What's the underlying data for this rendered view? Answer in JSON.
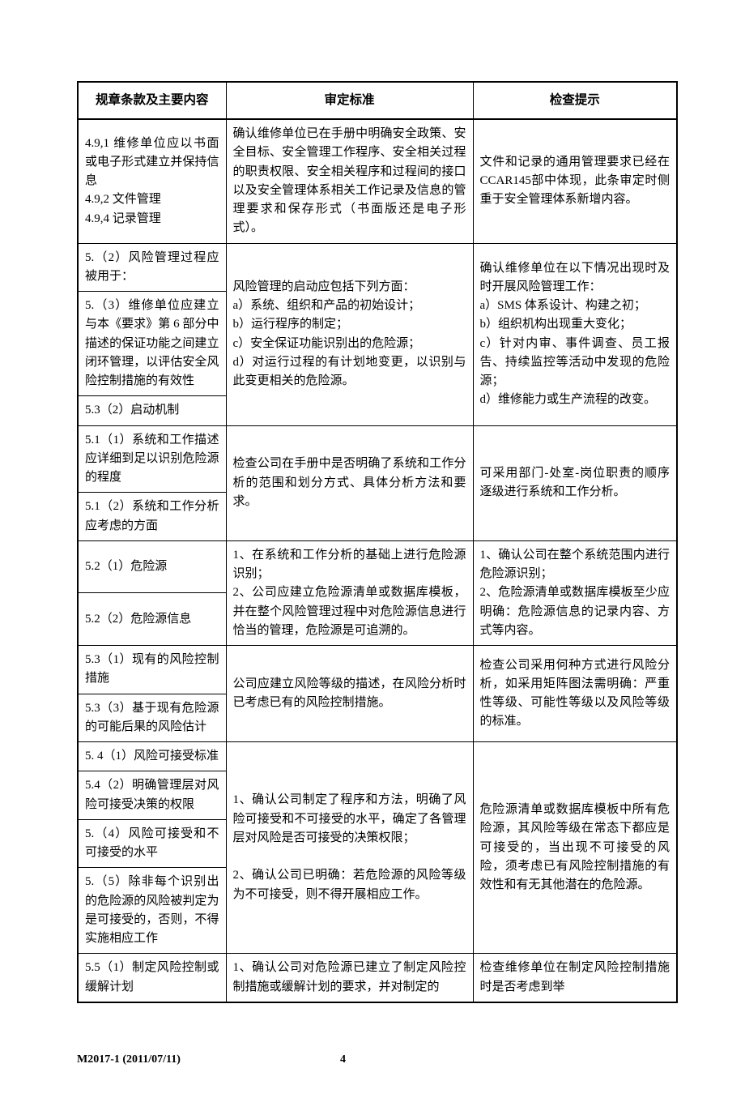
{
  "header": {
    "col1": "规章条款及主要内容",
    "col2": "审定标准",
    "col3": "检查提示"
  },
  "rows": {
    "r1c1": "4.9,1 维修单位应以书面或电子形式建立并保持信息\n4.9,2 文件管理\n4.9,4 记录管理",
    "r1c2": "确认维修单位已在手册中明确安全政策、安全目标、安全管理工作程序、安全相关过程的职责权限、安全相关程序和过程间的接口以及安全管理体系相关工作记录及信息的管理要求和保存形式（书面版还是电子形式）。",
    "r1c3": "文件和记录的通用管理要求已经在CCAR145部中体现，此条审定时侧重于安全管理体系新增内容。",
    "r2c1a": "5.（2）风险管理过程应被用于：",
    "r2c1b": "5.（3）维修单位应建立与本《要求》第 6 部分中描述的保证功能之间建立闭环管理，以评估安全风险控制措施的有效性",
    "r2c1c": "5.3（2）启动机制",
    "r2c2": "风险管理的启动应包括下列方面：\na）系统、组织和产品的初始设计；\nb）运行程序的制定；\nc）安全保证功能识别出的危险源；\nd）对运行过程的有计划地变更，以识别与此变更相关的危险源。",
    "r2c3": "确认维修单位在以下情况出现时及时开展风险管理工作：\na）SMS 体系设计、构建之初；\nb）组织机构出现重大变化；\nc）针对内审、事件调查、员工报告、持续监控等活动中发现的危险源；\nd）维修能力或生产流程的改变。",
    "r3c1a": "5.1（1）系统和工作描述应详细到足以识别危险源的程度",
    "r3c1b": "5.1（2）系统和工作分析应考虑的方面",
    "r3c2": "检查公司在手册中是否明确了系统和工作分析的范围和划分方式、具体分析方法和要求。",
    "r3c3": "可采用部门-处室-岗位职责的顺序逐级进行系统和工作分析。",
    "r4c1a": "5.2（1）危险源",
    "r4c1b": "5.2（2）危险源信息",
    "r4c2": "1、在系统和工作分析的基础上进行危险源识别；\n2、公司应建立危险源清单或数据库模板，并在整个风险管理过程中对危险源信息进行恰当的管理，危险源是可追溯的。",
    "r4c3": "1、确认公司在整个系统范围内进行危险源识别；\n2、危险源清单或数据库模板至少应明确：危险源信息的记录内容、方式等内容。",
    "r5c1a": "5.3（1）现有的风险控制措施",
    "r5c1b": "5.3（3）基于现有危险源的可能后果的风险估计",
    "r5c2": "公司应建立风险等级的描述，在风险分析时已考虑已有的风险控制措施。",
    "r5c3": "检查公司采用何种方式进行风险分析，如采用矩阵图法需明确：严重性等级、可能性等级以及风险等级的标准。",
    "r6c1a": "5. 4（1）风险可接受标准",
    "r6c1b": "5.4（2）明确管理层对风险可接受决策的权限",
    "r6c1c": "5.（4）风险可接受和不可接受的水平",
    "r6c1d": "5.（5）除非每个识别出的危险源的风险被判定为是可接受的，否则，不得实施相应工作",
    "r6c2": "1、确认公司制定了程序和方法，明确了风险可接受和不可接受的水平，确定了各管理层对风险是否可接受的决策权限；\n\n2、确认公司已明确：若危险源的风险等级为不可接受，则不得开展相应工作。",
    "r6c3": "危险源清单或数据库模板中所有危险源，其风险等级在常态下都应是可接受的，当出现不可接受的风险，须考虑已有风险控制措施的有效性和有无其他潜在的危险源。",
    "r7c1": "5.5（1）制定风险控制或缓解计划",
    "r7c2": "1、确认公司对危险源已建立了制定风险控制措施或缓解计划的要求，并对制定的",
    "r7c3": "检查维修单位在制定风险控制措施时是否考虑到举"
  },
  "footer": {
    "doc": "M2017-1 (2011/07/11)",
    "page": "4"
  }
}
